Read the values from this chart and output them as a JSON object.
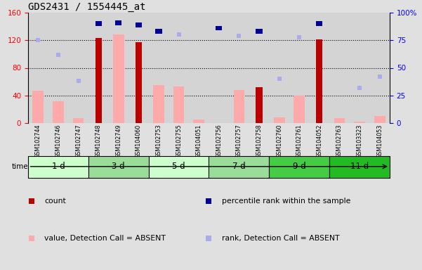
{
  "title": "GDS2431 / 1554445_at",
  "samples": [
    "GSM102744",
    "GSM102746",
    "GSM102747",
    "GSM102748",
    "GSM102749",
    "GSM104060",
    "GSM102753",
    "GSM102755",
    "GSM104051",
    "GSM102756",
    "GSM102757",
    "GSM102758",
    "GSM102760",
    "GSM102761",
    "GSM104052",
    "GSM102763",
    "GSM103323",
    "GSM104053"
  ],
  "time_groups": [
    {
      "label": "1 d",
      "start": 0,
      "end": 3,
      "color": "#ccffcc"
    },
    {
      "label": "3 d",
      "start": 3,
      "end": 6,
      "color": "#99dd99"
    },
    {
      "label": "5 d",
      "start": 6,
      "end": 9,
      "color": "#ccffcc"
    },
    {
      "label": "7 d",
      "start": 9,
      "end": 12,
      "color": "#99dd99"
    },
    {
      "label": "9 d",
      "start": 12,
      "end": 15,
      "color": "#44cc44"
    },
    {
      "label": "11 d",
      "start": 15,
      "end": 18,
      "color": "#22bb22"
    }
  ],
  "count_bars": [
    0,
    0,
    0,
    123,
    0,
    117,
    0,
    0,
    0,
    0,
    0,
    52,
    0,
    0,
    121,
    0,
    0,
    0
  ],
  "percentile_bars": [
    0,
    0,
    0,
    90,
    91,
    89,
    83,
    0,
    0,
    86,
    0,
    83,
    0,
    0,
    90,
    0,
    0,
    0
  ],
  "value_absent_bars": [
    47,
    32,
    7,
    0,
    128,
    0,
    55,
    53,
    5,
    0,
    48,
    0,
    8,
    40,
    0,
    7,
    2,
    10
  ],
  "rank_absent_dots": [
    75,
    62,
    38,
    0,
    0,
    0,
    0,
    80,
    0,
    0,
    79,
    0,
    40,
    78,
    0,
    0,
    32,
    42
  ],
  "ylim_left": [
    0,
    160
  ],
  "ylim_right": [
    0,
    100
  ],
  "left_ticks": [
    0,
    40,
    80,
    120,
    160
  ],
  "right_ticks": [
    0,
    25,
    50,
    75,
    100
  ],
  "count_color": "#bb0000",
  "percentile_color": "#000099",
  "value_absent_color": "#ffaaaa",
  "rank_absent_color": "#aaaaee",
  "bg_color": "#e0e0e0"
}
